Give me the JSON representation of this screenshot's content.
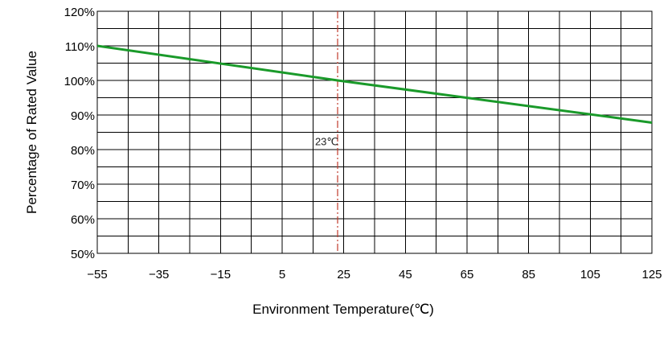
{
  "chart_data": {
    "type": "line",
    "title": "",
    "xlabel": "Environment Temperature(℃)",
    "ylabel": "Percentage of Rated Value",
    "xlim": [
      -55,
      125
    ],
    "ylim": [
      50,
      120
    ],
    "x_ticks": [
      -55,
      -35,
      -15,
      5,
      25,
      45,
      65,
      85,
      105,
      125
    ],
    "x_tick_labels": [
      "−55",
      "−35",
      "−15",
      "5",
      "25",
      "45",
      "65",
      "85",
      "105",
      "125"
    ],
    "y_ticks": [
      50,
      60,
      70,
      80,
      90,
      100,
      110,
      120
    ],
    "y_tick_labels": [
      "50%",
      "60%",
      "70%",
      "80%",
      "90%",
      "100%",
      "110%",
      "120%"
    ],
    "grid": true,
    "series": [
      {
        "x": [
          -55,
          23,
          125
        ],
        "y": [
          110,
          100,
          87.8
        ],
        "color": "#1a9a2a"
      }
    ],
    "reference_line": {
      "x": 23,
      "label": "23℃",
      "color": "#c0392b",
      "style": "dash-dot"
    },
    "colors": {
      "line": "#1a9a2a",
      "reference": "#c0392b",
      "grid": "#000000"
    }
  }
}
